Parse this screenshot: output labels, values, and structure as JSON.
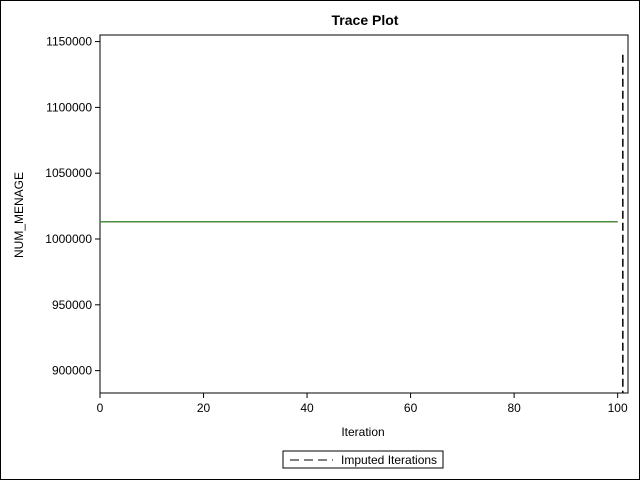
{
  "chart_data": {
    "type": "line",
    "title": "Trace Plot",
    "xlabel": "Iteration",
    "ylabel": "NUM_MENAGE",
    "xlim": [
      0,
      102
    ],
    "ylim": [
      883000,
      1155000
    ],
    "x_ticks": [
      0,
      20,
      40,
      60,
      80,
      100
    ],
    "y_ticks": [
      900000,
      950000,
      1000000,
      1050000,
      1100000,
      1150000
    ],
    "grid": false,
    "legend_position": "bottom-center",
    "series": [
      {
        "color": "#2c5fa8",
        "x": [
          0,
          10,
          20,
          30,
          40,
          50,
          60,
          70,
          80,
          90,
          100
        ],
        "y": [
          1013000,
          1013000,
          1013000,
          1013000,
          1013000,
          1013000,
          1013000,
          1013000,
          1013000,
          1013000,
          1013000
        ]
      },
      {
        "color": "#b0413e",
        "x": [
          0,
          10,
          20,
          30,
          40,
          50,
          60,
          70,
          80,
          90,
          100
        ],
        "y": [
          1013050,
          1013050,
          1013050,
          1013050,
          1013050,
          1013050,
          1013050,
          1013050,
          1013050,
          1013050,
          1013050
        ]
      },
      {
        "color": "#3a9a3a",
        "x": [
          0,
          10,
          20,
          30,
          40,
          50,
          60,
          70,
          80,
          90,
          100
        ],
        "y": [
          1013100,
          1013100,
          1013100,
          1013100,
          1013100,
          1013100,
          1013100,
          1013100,
          1013100,
          1013100,
          1013100
        ]
      }
    ],
    "imputed_marker": {
      "name": "Imputed Iterations",
      "x": 101,
      "color": "#000000"
    },
    "legend": [
      {
        "label": "Imputed Iterations",
        "style": "dashed",
        "color": "#808080"
      }
    ]
  }
}
